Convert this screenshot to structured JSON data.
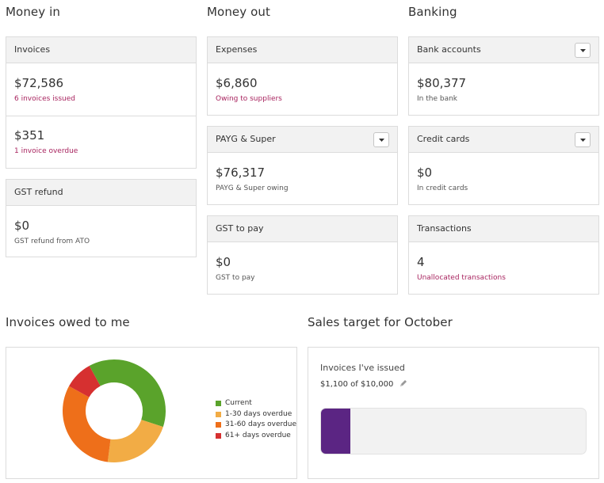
{
  "money_in": {
    "title": "Money in",
    "invoices": {
      "label": "Invoices",
      "amount1": "$72,586",
      "sub1": "6 invoices issued",
      "amount2": "$351",
      "sub2": "1 invoice overdue"
    },
    "gst_refund": {
      "label": "GST refund",
      "amount": "$0",
      "sub": "GST refund from ATO"
    }
  },
  "money_out": {
    "title": "Money out",
    "expenses": {
      "label": "Expenses",
      "amount": "$6,860",
      "sub": "Owing to suppliers"
    },
    "payg": {
      "label": "PAYG & Super",
      "amount": "$76,317",
      "sub": "PAYG & Super owing"
    },
    "gst_pay": {
      "label": "GST to pay",
      "amount": "$0",
      "sub": "GST to pay"
    }
  },
  "banking": {
    "title": "Banking",
    "bank_accounts": {
      "label": "Bank accounts",
      "amount": "$80,377",
      "sub": "In the bank"
    },
    "credit_cards": {
      "label": "Credit cards",
      "amount": "$0",
      "sub": "In credit cards"
    },
    "transactions": {
      "label": "Transactions",
      "amount": "4",
      "sub": "Unallocated transactions"
    }
  },
  "invoices_owed": {
    "title": "Invoices owed to me",
    "legend": [
      {
        "label": "Current",
        "color": "#5aa32b"
      },
      {
        "label": "1-30 days overdue",
        "color": "#f2ac45"
      },
      {
        "label": "31-60 days overdue",
        "color": "#ee6f1a"
      },
      {
        "label": "61+ days overdue",
        "color": "#d63030"
      }
    ]
  },
  "chart_data": {
    "type": "pie",
    "title": "",
    "categories": [
      "Current",
      "1-30 days overdue",
      "31-60 days overdue",
      "61+ days overdue"
    ],
    "values": [
      38,
      22,
      31,
      9
    ],
    "colors": [
      "#5aa32b",
      "#f2ac45",
      "#ee6f1a",
      "#d63030"
    ],
    "legend_position": "right"
  },
  "sales_target": {
    "title": "Sales target for October",
    "label": "Invoices I've issued",
    "progress_text": "$1,100 of $10,000",
    "progress_fraction": 0.11,
    "bar_color": "#5b2583",
    "edit_icon": "pencil-icon"
  }
}
